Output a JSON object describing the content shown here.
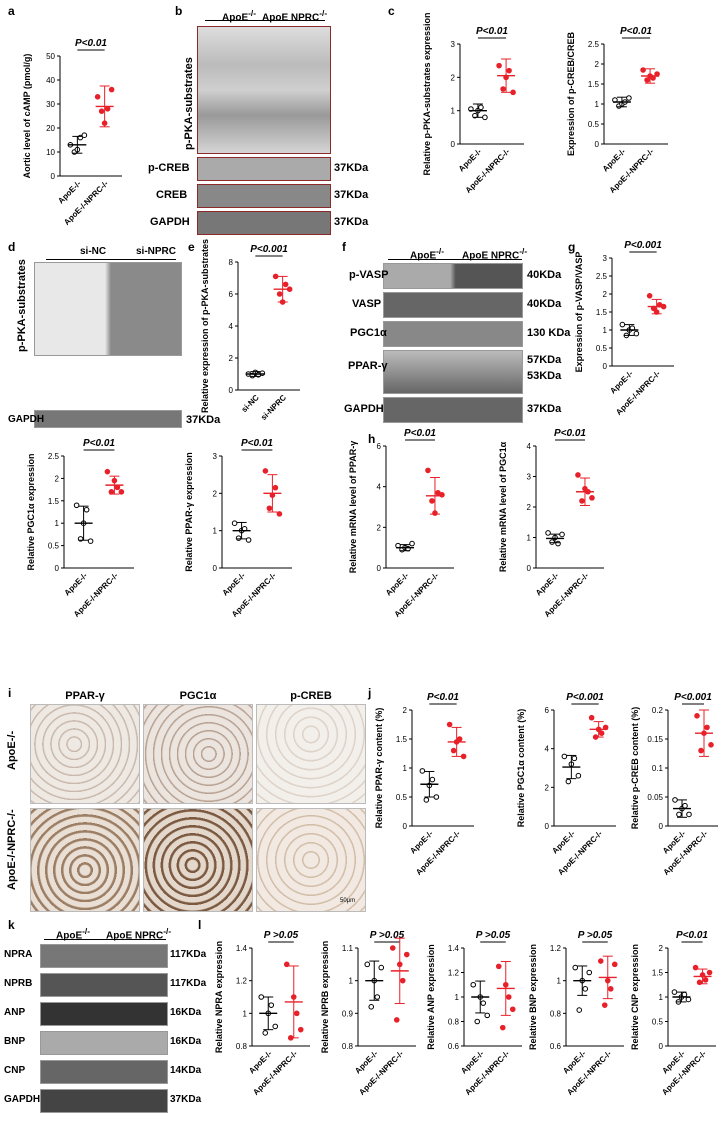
{
  "letters": {
    "a": "a",
    "b": "b",
    "c": "c",
    "d": "d",
    "e": "e",
    "f": "f",
    "g": "g",
    "h": "h",
    "i": "i",
    "j": "j",
    "k": "k",
    "l": "l"
  },
  "groups": {
    "apoe": "ApoE",
    "dko": "ApoE NPRC",
    "sup": "-/-",
    "sinc": "si-NC",
    "sinprc": "si-NPRC"
  },
  "colors": {
    "control": "#000000",
    "treat": "#e8202a",
    "blot_frame": "#8a2a2a"
  },
  "blots_b": {
    "substrate_label": "p-PKA-substrates",
    "rows": [
      {
        "label": "p-CREB",
        "kda": "37KDa"
      },
      {
        "label": "CREB",
        "kda": "37KDa"
      },
      {
        "label": "GAPDH",
        "kda": "37KDa"
      }
    ]
  },
  "blots_d": {
    "substrate_label": "p-PKA-substrates",
    "gapdh": "GAPDH",
    "kda": "37KDa"
  },
  "blots_f": {
    "rows": [
      {
        "label": "p-VASP",
        "kda": "40KDa"
      },
      {
        "label": "VASP",
        "kda": "40KDa"
      },
      {
        "label": "PGC1α",
        "kda": "130 KDa"
      },
      {
        "label": "PPAR-γ",
        "kda": "57KDa",
        "kda2": "53KDa"
      },
      {
        "label": "GAPDH",
        "kda": "37KDa"
      }
    ]
  },
  "ihc": {
    "cols": [
      "PPAR-γ",
      "PGC1α",
      "p-CREB"
    ],
    "rows": [
      "ApoE-/-",
      "ApoE-/-NPRC-/-"
    ],
    "scale": "50μm"
  },
  "blots_k": {
    "rows": [
      {
        "label": "NPRA",
        "kda": "117KDa"
      },
      {
        "label": "NPRB",
        "kda": "117KDa"
      },
      {
        "label": "ANP",
        "kda": "16KDa"
      },
      {
        "label": "BNP",
        "kda": "16KDa"
      },
      {
        "label": "CNP",
        "kda": "14KDa"
      },
      {
        "label": "GAPDH",
        "kda": "37KDa"
      }
    ]
  },
  "chart_data": [
    {
      "id": "a",
      "type": "scatter",
      "ylabel": "Aortic level of cAMP (pmol/g)",
      "ylim": [
        0,
        50
      ],
      "ticks": [
        0,
        10,
        20,
        30,
        40,
        50
      ],
      "p": "P<0.01",
      "groups": [
        "ApoE-/-",
        "ApoE-/-NPRC-/-"
      ],
      "points": [
        [
          13,
          10,
          11,
          16,
          17
        ],
        [
          33,
          27,
          22,
          28,
          36
        ]
      ],
      "mean": [
        13,
        29
      ],
      "sd": [
        3.5,
        8.5
      ]
    },
    {
      "id": "c1",
      "type": "scatter",
      "ylabel": "Relative p-PKA-substrates expression",
      "ylim": [
        0,
        3
      ],
      "ticks": [
        0,
        1,
        2,
        3
      ],
      "p": "P<0.01",
      "groups": [
        "ApoE-/-",
        "ApoE-/-NPRC-/-"
      ],
      "points": [
        [
          1.05,
          0.85,
          1.0,
          1.1,
          0.8
        ],
        [
          2.35,
          1.65,
          2.0,
          2.2,
          1.55
        ]
      ],
      "mean": [
        1.0,
        2.05
      ],
      "sd": [
        0.2,
        0.5
      ]
    },
    {
      "id": "c2",
      "type": "scatter",
      "ylabel": "Expression of p-CREB/CREB",
      "ylim": [
        0,
        2.5
      ],
      "ticks": [
        0.0,
        0.5,
        1.0,
        1.5,
        2.0,
        2.5
      ],
      "p": "P<0.01",
      "groups": [
        "ApoE-/-",
        "ApoE-/-NPRC-/-"
      ],
      "points": [
        [
          1.1,
          0.95,
          1.0,
          1.05,
          1.15
        ],
        [
          1.85,
          1.6,
          1.7,
          1.65,
          1.75
        ]
      ],
      "mean": [
        1.05,
        1.7
      ],
      "sd": [
        0.12,
        0.18
      ]
    },
    {
      "id": "e",
      "type": "scatter",
      "ylabel": "Relative expression of p-PKA-substrates",
      "ylim": [
        0,
        8
      ],
      "ticks": [
        0,
        2,
        4,
        6,
        8
      ],
      "p": "P<0.001",
      "groups": [
        "si-NC",
        "si-NPRC"
      ],
      "points": [
        [
          1.0,
          0.9,
          1.1,
          0.95,
          1.05
        ],
        [
          7.1,
          6.0,
          5.5,
          6.6,
          6.3
        ]
      ],
      "mean": [
        1.0,
        6.3
      ],
      "sd": [
        0.15,
        0.8
      ]
    },
    {
      "id": "g",
      "type": "scatter",
      "ylabel": "Expression of p-VASP/VASP",
      "ylim": [
        0,
        3
      ],
      "ticks": [
        0.0,
        0.5,
        1.0,
        1.5,
        2.0,
        2.5,
        3.0
      ],
      "p": "P<0.001",
      "groups": [
        "ApoE-/-",
        "ApoE-/-NPRC-/-"
      ],
      "points": [
        [
          1.15,
          0.85,
          1.0,
          1.05,
          0.9
        ],
        [
          1.95,
          1.6,
          1.5,
          1.7,
          1.65
        ]
      ],
      "mean": [
        1.0,
        1.65
      ],
      "sd": [
        0.15,
        0.2
      ]
    },
    {
      "id": "f1",
      "type": "scatter",
      "ylabel": "Relative PGC1α expression",
      "ylim": [
        0,
        2.5
      ],
      "ticks": [
        0.0,
        0.5,
        1.0,
        1.5,
        2.0,
        2.5
      ],
      "p": "P<0.01",
      "groups": [
        "ApoE-/-",
        "ApoE-/-NPRC-/-"
      ],
      "points": [
        [
          1.4,
          0.65,
          1.0,
          1.3,
          0.6
        ],
        [
          2.15,
          1.7,
          1.95,
          1.8,
          1.7
        ]
      ],
      "mean": [
        1.0,
        1.85
      ],
      "sd": [
        0.38,
        0.2
      ]
    },
    {
      "id": "f2",
      "type": "scatter",
      "ylabel": "Relative PPAR-γ expression",
      "ylim": [
        0,
        3
      ],
      "ticks": [
        0,
        1,
        2,
        3
      ],
      "p": "P<0.01",
      "groups": [
        "ApoE-/-",
        "ApoE-/-NPRC-/-"
      ],
      "points": [
        [
          1.2,
          0.8,
          1.0,
          1.05,
          0.75
        ],
        [
          2.6,
          1.6,
          1.95,
          2.15,
          1.45
        ]
      ],
      "mean": [
        1.0,
        2.0
      ],
      "sd": [
        0.22,
        0.5
      ]
    },
    {
      "id": "h1",
      "type": "scatter",
      "ylabel": "Relative mRNA level of PPAR-γ",
      "ylim": [
        0,
        6
      ],
      "ticks": [
        0,
        2,
        4,
        6
      ],
      "p": "P<0.01",
      "groups": [
        "ApoE-/-",
        "ApoE-/-NPRC-/-"
      ],
      "points": [
        [
          1.1,
          0.9,
          1.0,
          0.95,
          1.2
        ],
        [
          4.8,
          3.3,
          2.7,
          3.7,
          3.6
        ]
      ],
      "mean": [
        1.0,
        3.55
      ],
      "sd": [
        0.15,
        0.9
      ]
    },
    {
      "id": "h2",
      "type": "scatter",
      "ylabel": "Relative mRNA level of PGC1α",
      "ylim": [
        0,
        4
      ],
      "ticks": [
        0,
        1,
        2,
        3,
        4
      ],
      "p": "P<0.01",
      "groups": [
        "ApoE-/-",
        "ApoE-/-NPRC-/-"
      ],
      "points": [
        [
          1.15,
          0.85,
          1.0,
          0.8,
          1.1
        ],
        [
          3.05,
          2.2,
          2.6,
          2.5,
          2.3
        ]
      ],
      "mean": [
        0.97,
        2.5
      ],
      "sd": [
        0.14,
        0.45
      ]
    },
    {
      "id": "j1",
      "type": "scatter",
      "ylabel": "Relative PPAR-γ content (%)",
      "ylim": [
        0,
        2.0
      ],
      "ticks": [
        0.0,
        0.5,
        1.0,
        1.5,
        2.0
      ],
      "p": "P<0.01",
      "groups": [
        "ApoE-/-",
        "ApoE-/-NPRC-/-"
      ],
      "points": [
        [
          0.95,
          0.45,
          0.7,
          0.8,
          0.5
        ],
        [
          1.75,
          1.3,
          1.45,
          1.5,
          1.2
        ]
      ],
      "mean": [
        0.72,
        1.45
      ],
      "sd": [
        0.22,
        0.25
      ]
    },
    {
      "id": "j2",
      "type": "scatter",
      "ylabel": "Relative PGC1α content (%)",
      "ylim": [
        0,
        6
      ],
      "ticks": [
        0,
        2,
        4,
        6
      ],
      "p": "P<0.001",
      "groups": [
        "ApoE-/-",
        "ApoE-/-NPRC-/-"
      ],
      "points": [
        [
          3.6,
          2.3,
          3.2,
          3.5,
          2.6
        ],
        [
          5.6,
          4.6,
          5.0,
          4.8,
          5.1
        ]
      ],
      "mean": [
        3.05,
        5.0
      ],
      "sd": [
        0.6,
        0.4
      ]
    },
    {
      "id": "j3",
      "type": "scatter",
      "ylabel": "Relative p-CREB content (%)",
      "ylim": [
        0,
        0.2
      ],
      "ticks": [
        0.0,
        0.05,
        0.1,
        0.15,
        0.2
      ],
      "p": "P<0.001",
      "groups": [
        "ApoE-/-",
        "ApoE-/-NPRC-/-"
      ],
      "points": [
        [
          0.045,
          0.02,
          0.03,
          0.035,
          0.02
        ],
        [
          0.19,
          0.13,
          0.16,
          0.17,
          0.14
        ]
      ],
      "mean": [
        0.03,
        0.16
      ],
      "sd": [
        0.015,
        0.04
      ]
    },
    {
      "id": "l1",
      "type": "scatter",
      "ylabel": "Relative NPRA expression",
      "ylim": [
        0.8,
        1.4
      ],
      "ticks": [
        0.8,
        1.0,
        1.2,
        1.4
      ],
      "p": "P >0.05",
      "groups": [
        "ApoE-/-",
        "ApoE-/-NPRC-/-"
      ],
      "points": [
        [
          1.1,
          0.88,
          1.0,
          1.05,
          0.92
        ],
        [
          1.3,
          0.85,
          1.1,
          1.0,
          0.9
        ]
      ],
      "mean": [
        1.0,
        1.07
      ],
      "sd": [
        0.1,
        0.22
      ]
    },
    {
      "id": "l2",
      "type": "scatter",
      "ylabel": "Relative NPRB expression",
      "ylim": [
        0.8,
        1.1
      ],
      "ticks": [
        0.8,
        0.9,
        1.0,
        1.1
      ],
      "p": "P >0.05",
      "groups": [
        "ApoE-/-",
        "ApoE-/-NPRC-/-"
      ],
      "points": [
        [
          1.05,
          0.92,
          1.0,
          0.95,
          1.04
        ],
        [
          1.1,
          0.88,
          1.05,
          1.0,
          1.08
        ]
      ],
      "mean": [
        1.0,
        1.03
      ],
      "sd": [
        0.06,
        0.1
      ]
    },
    {
      "id": "l3",
      "type": "scatter",
      "ylabel": "Relative ANP expression",
      "ylim": [
        0.6,
        1.4
      ],
      "ticks": [
        0.6,
        0.8,
        1.0,
        1.2,
        1.4
      ],
      "p": "P >0.05",
      "groups": [
        "ApoE-/-",
        "ApoE-/-NPRC-/-"
      ],
      "points": [
        [
          1.1,
          0.8,
          1.0,
          0.95,
          0.85
        ],
        [
          1.25,
          0.75,
          1.1,
          1.0,
          0.9
        ]
      ],
      "mean": [
        1.0,
        1.07
      ],
      "sd": [
        0.13,
        0.22
      ]
    },
    {
      "id": "l4",
      "type": "scatter",
      "ylabel": "Relative BNP expression",
      "ylim": [
        0.6,
        1.2
      ],
      "ticks": [
        0.6,
        0.8,
        1.0,
        1.2
      ],
      "p": "P >0.05",
      "groups": [
        "ApoE-/-",
        "ApoE-/-NPRC-/-"
      ],
      "points": [
        [
          1.08,
          0.82,
          1.0,
          0.95,
          1.05
        ],
        [
          1.12,
          0.85,
          1.0,
          0.95,
          1.1
        ]
      ],
      "mean": [
        1.0,
        1.02
      ],
      "sd": [
        0.09,
        0.13
      ]
    },
    {
      "id": "l5",
      "type": "scatter",
      "ylabel": "Relative CNP expression",
      "ylim": [
        0,
        2.0
      ],
      "ticks": [
        0.0,
        0.5,
        1.0,
        1.5,
        2.0
      ],
      "p": "P<0.01",
      "groups": [
        "ApoE-/-",
        "ApoE-/-NPRC-/-"
      ],
      "points": [
        [
          1.1,
          0.9,
          1.0,
          1.05,
          0.95
        ],
        [
          1.6,
          1.3,
          1.45,
          1.35,
          1.5
        ]
      ],
      "mean": [
        1.0,
        1.42
      ],
      "sd": [
        0.1,
        0.15
      ]
    }
  ]
}
